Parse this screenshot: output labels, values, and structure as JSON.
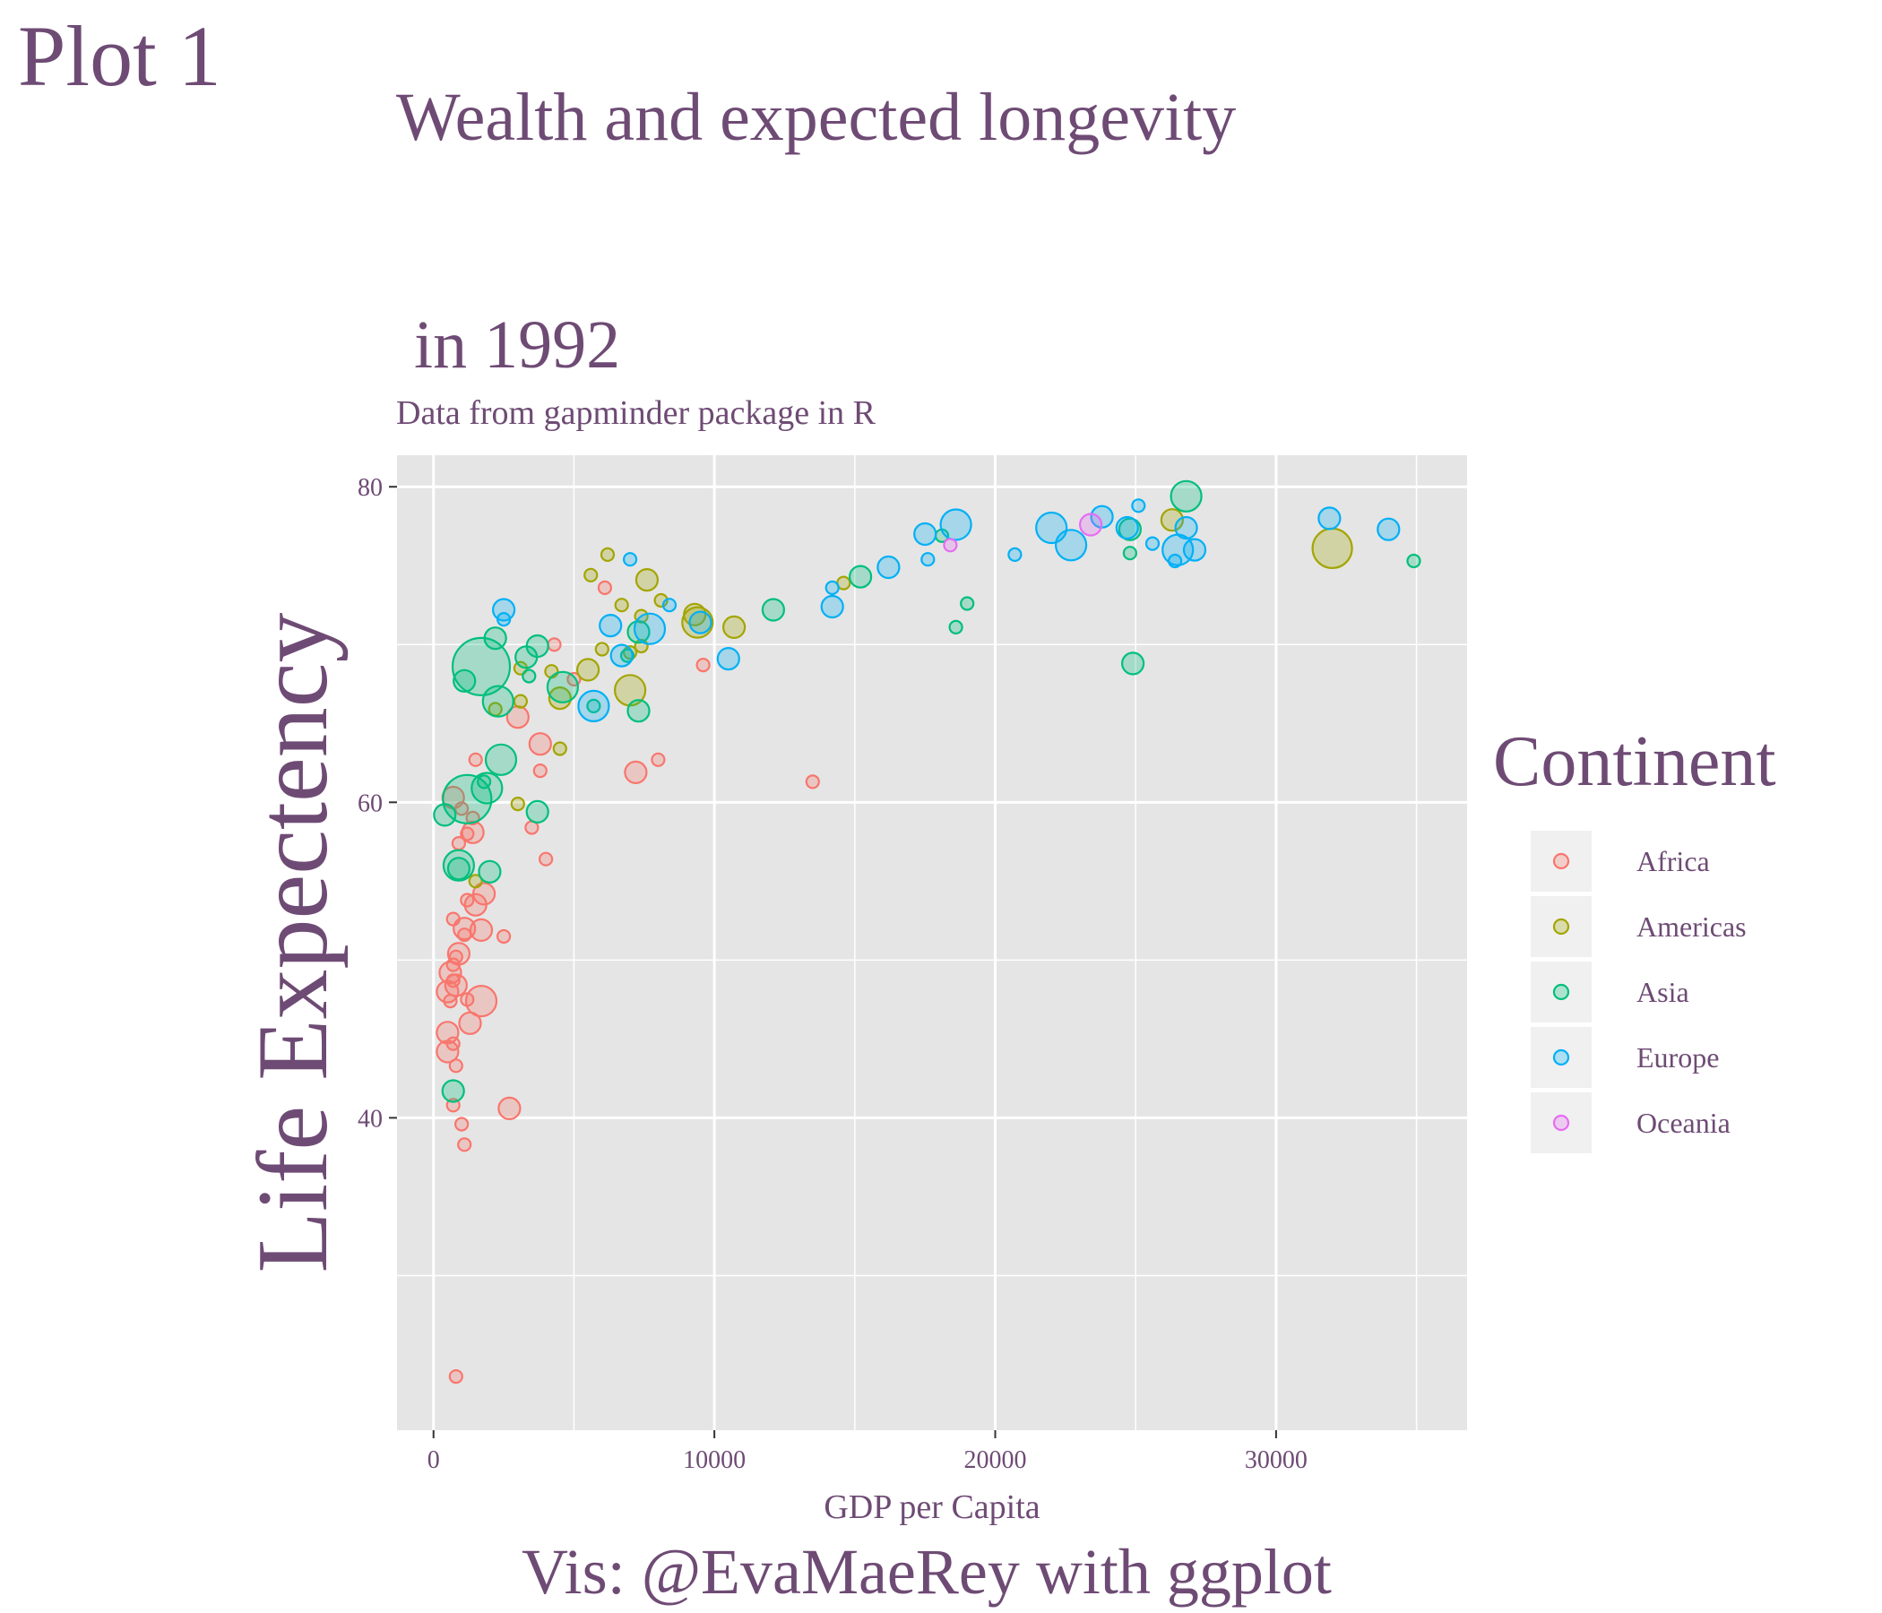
{
  "plot_tag": "Plot 1",
  "caption": "Vis: @EvaMaeRey with ggplot",
  "colors": {
    "text": "#6e4b74",
    "panel": "#e5e5e5",
    "grid": "#ffffff",
    "Africa": "#F8766D",
    "Americas": "#A3A500",
    "Asia": "#00BF7D",
    "Europe": "#00B0F6",
    "Oceania": "#E76BF3"
  },
  "chart_data": {
    "type": "scatter",
    "title_lines": [
      "Wealth and expected longevity",
      "in 1992"
    ],
    "subtitle": "Data from gapminder package in R",
    "xlabel": "GDP per Capita",
    "ylabel": "Life Expectency",
    "xlim": [
      -1300,
      36800
    ],
    "ylim": [
      20.2,
      82
    ],
    "x_ticks": [
      0,
      10000,
      20000,
      30000
    ],
    "x_tick_labels": [
      "0",
      "10000",
      "20000",
      "30000"
    ],
    "y_ticks": [
      40,
      60,
      80
    ],
    "y_tick_labels": [
      "40",
      "60",
      "80"
    ],
    "legend": {
      "title": "Continent",
      "position": "right",
      "entries": [
        "Africa",
        "Americas",
        "Asia",
        "Europe",
        "Oceania"
      ]
    },
    "series": [
      {
        "name": "Africa",
        "points": [
          [
            6100,
            73.6,
            1
          ],
          [
            4300,
            70.0,
            1
          ],
          [
            5000,
            67.8,
            1
          ],
          [
            3000,
            65.4,
            2
          ],
          [
            3800,
            63.7,
            2
          ],
          [
            8000,
            62.7,
            1
          ],
          [
            1500,
            62.7,
            1
          ],
          [
            3800,
            62.0,
            1
          ],
          [
            7200,
            61.9,
            2
          ],
          [
            13500,
            61.3,
            1
          ],
          [
            700,
            60.3,
            2
          ],
          [
            1000,
            59.6,
            1
          ],
          [
            1400,
            59.0,
            1
          ],
          [
            1400,
            58.1,
            2
          ],
          [
            1200,
            58.0,
            1
          ],
          [
            3500,
            58.4,
            1
          ],
          [
            900,
            57.4,
            1
          ],
          [
            4000,
            56.4,
            1
          ],
          [
            1800,
            54.2,
            2
          ],
          [
            1200,
            53.8,
            1
          ],
          [
            1500,
            53.5,
            2
          ],
          [
            700,
            52.6,
            1
          ],
          [
            1100,
            52.0,
            2
          ],
          [
            1700,
            51.9,
            2
          ],
          [
            1100,
            51.6,
            1
          ],
          [
            2500,
            51.5,
            1
          ],
          [
            900,
            50.4,
            2
          ],
          [
            800,
            50.2,
            1
          ],
          [
            700,
            49.7,
            1
          ],
          [
            600,
            49.2,
            2
          ],
          [
            700,
            48.7,
            1
          ],
          [
            800,
            48.4,
            2
          ],
          [
            500,
            48.0,
            2
          ],
          [
            600,
            47.4,
            1
          ],
          [
            1700,
            47.4,
            3
          ],
          [
            1200,
            47.5,
            1
          ],
          [
            1300,
            46.0,
            2
          ],
          [
            500,
            45.4,
            2
          ],
          [
            700,
            44.7,
            1
          ],
          [
            500,
            44.2,
            2
          ],
          [
            800,
            43.3,
            1
          ],
          [
            700,
            40.8,
            1
          ],
          [
            2700,
            40.6,
            2
          ],
          [
            1000,
            39.6,
            1
          ],
          [
            1100,
            38.3,
            1
          ],
          [
            800,
            23.6,
            1
          ],
          [
            9600,
            68.7,
            1
          ]
        ]
      },
      {
        "name": "Americas",
        "points": [
          [
            6200,
            75.7,
            1
          ],
          [
            5600,
            74.4,
            1
          ],
          [
            7600,
            74.1,
            2
          ],
          [
            6700,
            72.5,
            1
          ],
          [
            8100,
            72.8,
            1
          ],
          [
            9300,
            71.9,
            2
          ],
          [
            9400,
            71.4,
            3
          ],
          [
            10700,
            71.1,
            2
          ],
          [
            7400,
            71.8,
            1
          ],
          [
            14600,
            73.9,
            1
          ],
          [
            3100,
            68.5,
            1
          ],
          [
            4200,
            68.3,
            1
          ],
          [
            5500,
            68.4,
            2
          ],
          [
            6000,
            69.7,
            1
          ],
          [
            7000,
            69.5,
            1
          ],
          [
            7400,
            69.9,
            1
          ],
          [
            7000,
            67.1,
            3
          ],
          [
            3100,
            66.4,
            1
          ],
          [
            4500,
            66.6,
            2
          ],
          [
            2200,
            65.9,
            1
          ],
          [
            4500,
            63.4,
            1
          ],
          [
            3000,
            59.9,
            1
          ],
          [
            1500,
            55.0,
            1
          ],
          [
            26300,
            77.9,
            2
          ],
          [
            32000,
            76.1,
            4
          ]
        ]
      },
      {
        "name": "Asia",
        "points": [
          [
            1700,
            68.6,
            6
          ],
          [
            1200,
            60.2,
            5
          ],
          [
            2400,
            62.7,
            3
          ],
          [
            1900,
            60.9,
            3
          ],
          [
            2300,
            66.4,
            3
          ],
          [
            1100,
            67.7,
            2
          ],
          [
            2200,
            70.4,
            2
          ],
          [
            3300,
            69.2,
            2
          ],
          [
            3700,
            69.9,
            2
          ],
          [
            3400,
            68.0,
            1
          ],
          [
            4600,
            67.3,
            3
          ],
          [
            7300,
            70.8,
            2
          ],
          [
            7300,
            65.8,
            2
          ],
          [
            6900,
            69.3,
            1
          ],
          [
            12100,
            72.2,
            2
          ],
          [
            15200,
            74.3,
            2
          ],
          [
            18100,
            76.9,
            1
          ],
          [
            18600,
            71.1,
            1
          ],
          [
            19000,
            72.6,
            1
          ],
          [
            24800,
            77.3,
            2
          ],
          [
            24800,
            75.8,
            1
          ],
          [
            24900,
            68.8,
            2
          ],
          [
            26800,
            79.4,
            3
          ],
          [
            34900,
            75.3,
            1
          ],
          [
            400,
            59.2,
            2
          ],
          [
            900,
            56.0,
            3
          ],
          [
            900,
            55.8,
            2
          ],
          [
            2000,
            55.6,
            2
          ],
          [
            700,
            41.7,
            2
          ],
          [
            1800,
            61.3,
            1
          ],
          [
            3700,
            59.4,
            2
          ],
          [
            5700,
            66.1,
            1
          ]
        ]
      },
      {
        "name": "Europe",
        "points": [
          [
            2500,
            72.2,
            2
          ],
          [
            2500,
            71.6,
            1
          ],
          [
            7000,
            75.4,
            1
          ],
          [
            6300,
            71.2,
            2
          ],
          [
            6700,
            69.3,
            2
          ],
          [
            7700,
            71.0,
            3
          ],
          [
            8400,
            72.5,
            1
          ],
          [
            9500,
            71.4,
            2
          ],
          [
            5700,
            66.1,
            3
          ],
          [
            10500,
            69.1,
            2
          ],
          [
            14200,
            72.4,
            2
          ],
          [
            14200,
            73.6,
            1
          ],
          [
            16200,
            74.9,
            2
          ],
          [
            17500,
            77.0,
            2
          ],
          [
            17600,
            75.4,
            1
          ],
          [
            18600,
            77.6,
            3
          ],
          [
            20700,
            75.7,
            1
          ],
          [
            22000,
            77.4,
            3
          ],
          [
            22700,
            76.3,
            3
          ],
          [
            23800,
            78.1,
            2
          ],
          [
            24700,
            77.4,
            2
          ],
          [
            25100,
            78.8,
            1
          ],
          [
            25600,
            76.4,
            1
          ],
          [
            26400,
            75.3,
            1
          ],
          [
            26500,
            76.0,
            3
          ],
          [
            26800,
            77.4,
            2
          ],
          [
            27100,
            76.0,
            2
          ],
          [
            31900,
            78.0,
            2
          ],
          [
            34000,
            77.3,
            2
          ]
        ]
      },
      {
        "name": "Oceania",
        "points": [
          [
            18400,
            76.3,
            1
          ],
          [
            23400,
            77.6,
            2
          ]
        ]
      }
    ]
  }
}
